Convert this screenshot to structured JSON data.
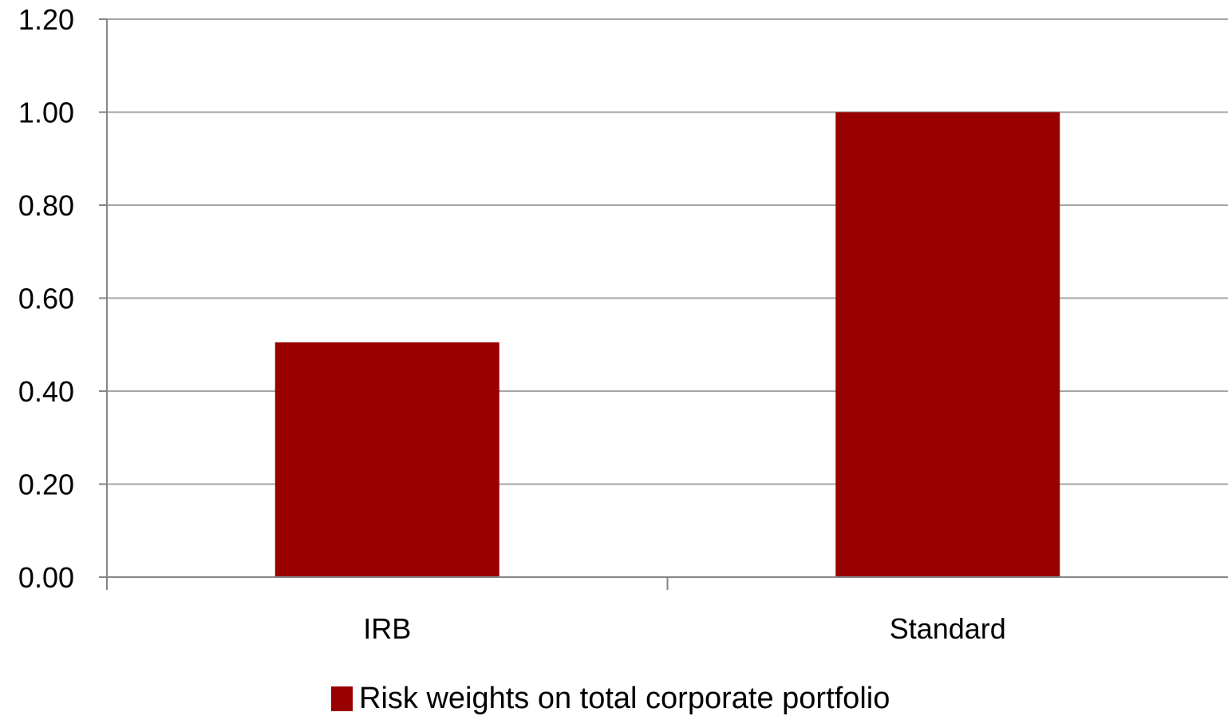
{
  "colors": {
    "bar": "#990000",
    "grid": "#a6a6a6",
    "axis": "#868686",
    "background": "#ffffff"
  },
  "chart_data": {
    "type": "bar",
    "title": "",
    "xlabel": "",
    "ylabel": "",
    "categories": [
      "IRB",
      "Standard"
    ],
    "series": [
      {
        "name": "Risk weights on total corporate portfolio",
        "values": [
          0.505,
          1.0
        ]
      }
    ],
    "ylim": [
      0,
      1.2
    ],
    "yticks": [
      0.0,
      0.2,
      0.4,
      0.6,
      0.8,
      1.0,
      1.2
    ],
    "ytick_labels": [
      "0.00",
      "0.20",
      "0.40",
      "0.60",
      "0.80",
      "1.00",
      "1.20"
    ],
    "grid": true,
    "legend_position": "bottom"
  }
}
